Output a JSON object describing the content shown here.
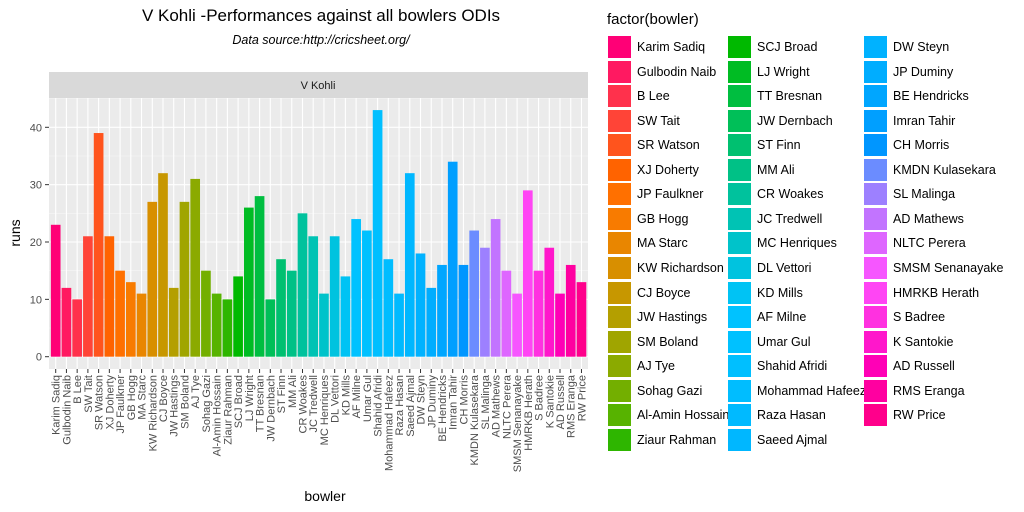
{
  "chart_data": {
    "type": "bar",
    "title": "V Kohli -Performances against all bowlers ODIs",
    "subtitle": "Data source:http://cricsheet.org/",
    "facet_label": "V Kohli",
    "xlabel": "bowler",
    "ylabel": "runs",
    "ylim": [
      0,
      45
    ],
    "yticks": [
      0,
      10,
      20,
      30,
      40
    ],
    "grid": true,
    "legend": {
      "title": "factor(bowler)",
      "placement": "right",
      "columns": 3
    },
    "palette": "hue",
    "categories": [
      "Karim Sadiq",
      "Gulbodin Naib",
      "B Lee",
      "SW Tait",
      "SR Watson",
      "XJ Doherty",
      "JP Faulkner",
      "GB Hogg",
      "MA Starc",
      "KW Richardson",
      "CJ Boyce",
      "JW Hastings",
      "SM Boland",
      "AJ Tye",
      "Sohag Gazi",
      "Al-Amin Hossain",
      "Ziaur Rahman",
      "SCJ Broad",
      "LJ Wright",
      "TT Bresnan",
      "JW Dernbach",
      "ST Finn",
      "MM Ali",
      "CR Woakes",
      "JC Tredwell",
      "MC Henriques",
      "DL Vettori",
      "KD Mills",
      "AF Milne",
      "Umar Gul",
      "Shahid Afridi",
      "Mohammad Hafeez",
      "Raza Hasan",
      "Saeed Ajmal",
      "DW Steyn",
      "JP Duminy",
      "BE Hendricks",
      "Imran Tahir",
      "CH Morris",
      "KMDN Kulasekara",
      "SL Malinga",
      "AD Mathews",
      "NLTC Perera",
      "SMSM Senanayake",
      "HMRKB Herath",
      "S Badree",
      "K Santokie",
      "AD Russell",
      "RMS Eranga",
      "RW Price"
    ],
    "values": [
      23,
      12,
      10,
      21,
      39,
      21,
      15,
      13,
      11,
      27,
      32,
      12,
      27,
      31,
      15,
      11,
      10,
      14,
      26,
      28,
      10,
      17,
      15,
      25,
      21,
      11,
      21,
      14,
      24,
      22,
      43,
      17,
      11,
      32,
      18,
      12,
      16,
      34,
      16,
      22,
      19,
      24,
      15,
      11,
      29,
      15,
      19,
      11,
      16,
      13
    ]
  }
}
